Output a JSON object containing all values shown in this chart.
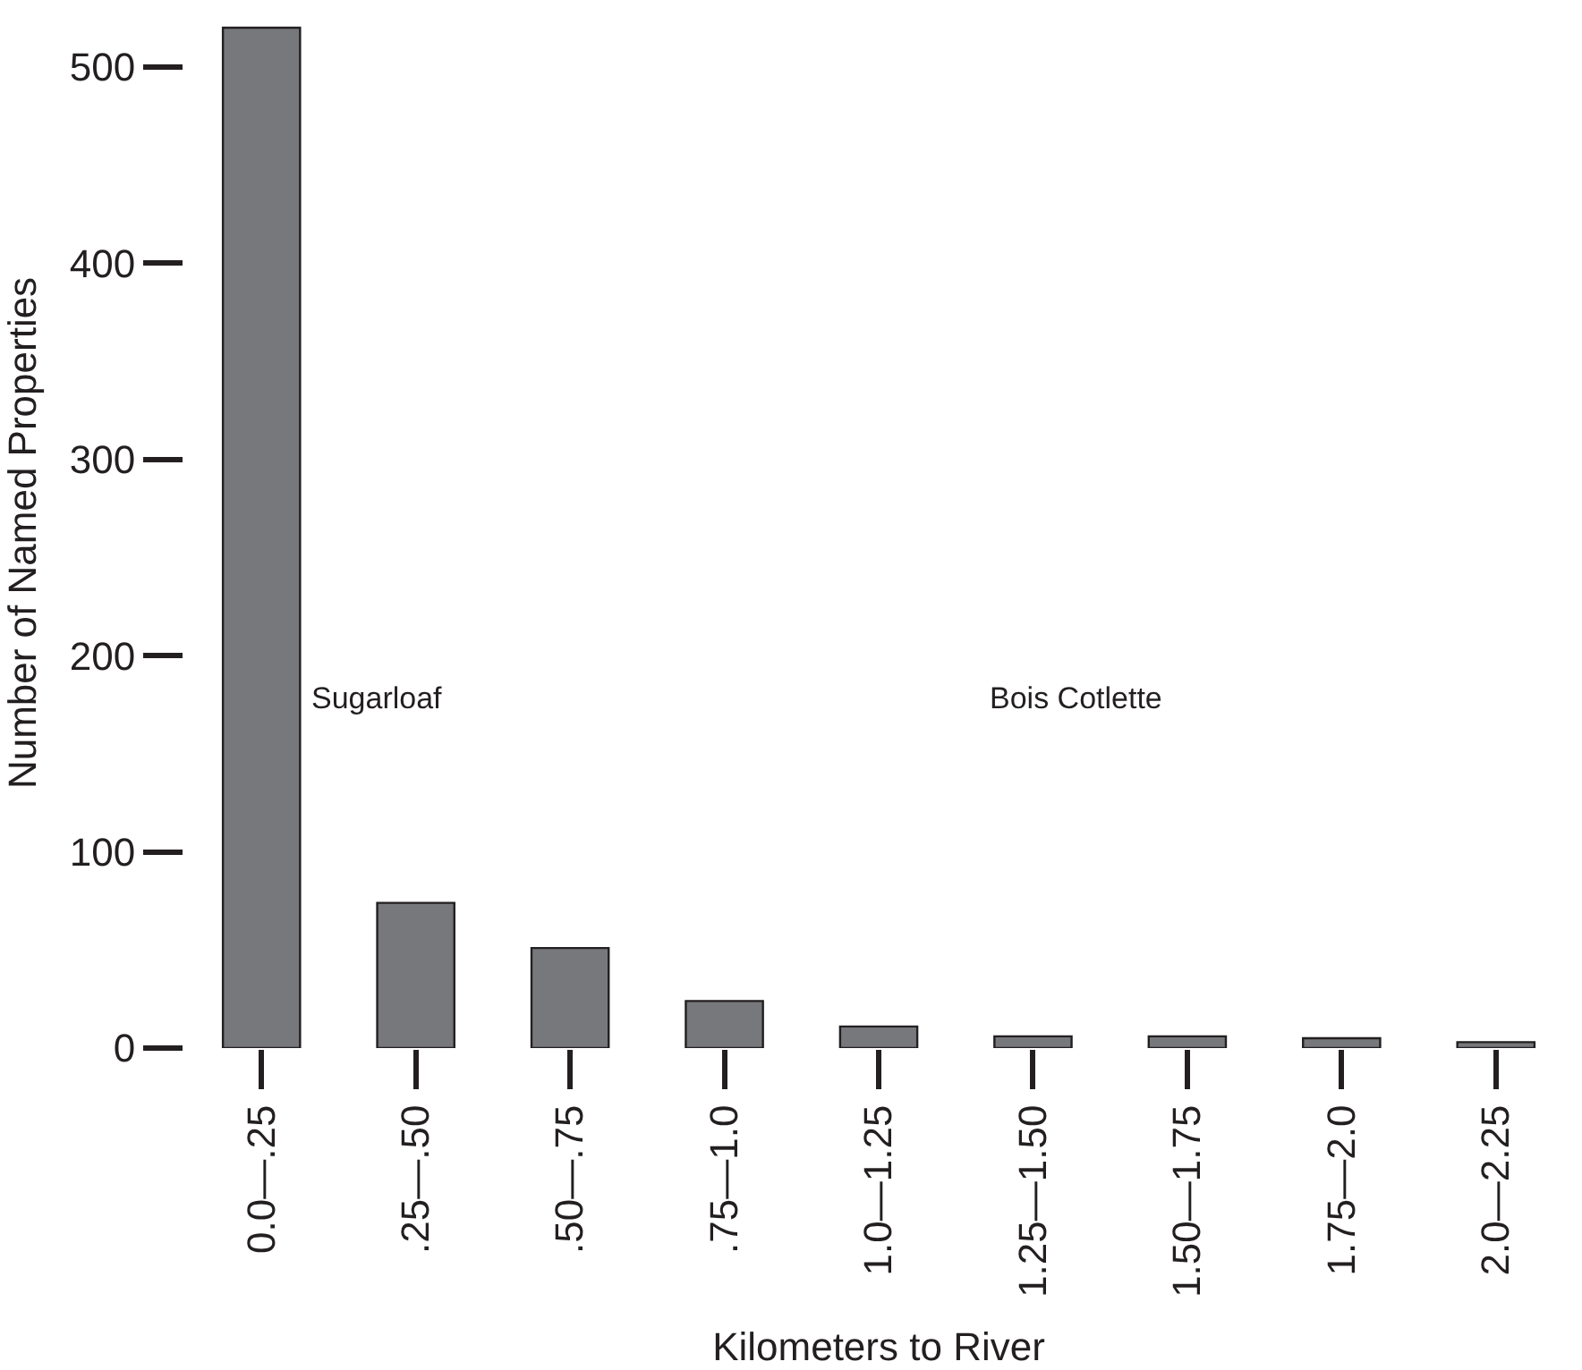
{
  "chart_data": {
    "type": "bar",
    "xlabel": "Kilometers to River",
    "ylabel": "Number of Named Properties",
    "categories": [
      "0.0—.25",
      ".25—.50",
      ".50—.75",
      ".75—1.0",
      "1.0—1.25",
      "1.25—1.50",
      "1.50—1.75",
      "1.75—2.0",
      "2.0—2.25"
    ],
    "values": [
      520,
      74,
      51,
      24,
      11,
      6,
      6,
      5,
      3
    ],
    "color": "#77787b",
    "ylim": [
      0,
      525
    ],
    "yticks": [
      0,
      100,
      200,
      300,
      400,
      500
    ],
    "annotations": [
      "Sugarloaf",
      "Bois Cotlette"
    ]
  }
}
